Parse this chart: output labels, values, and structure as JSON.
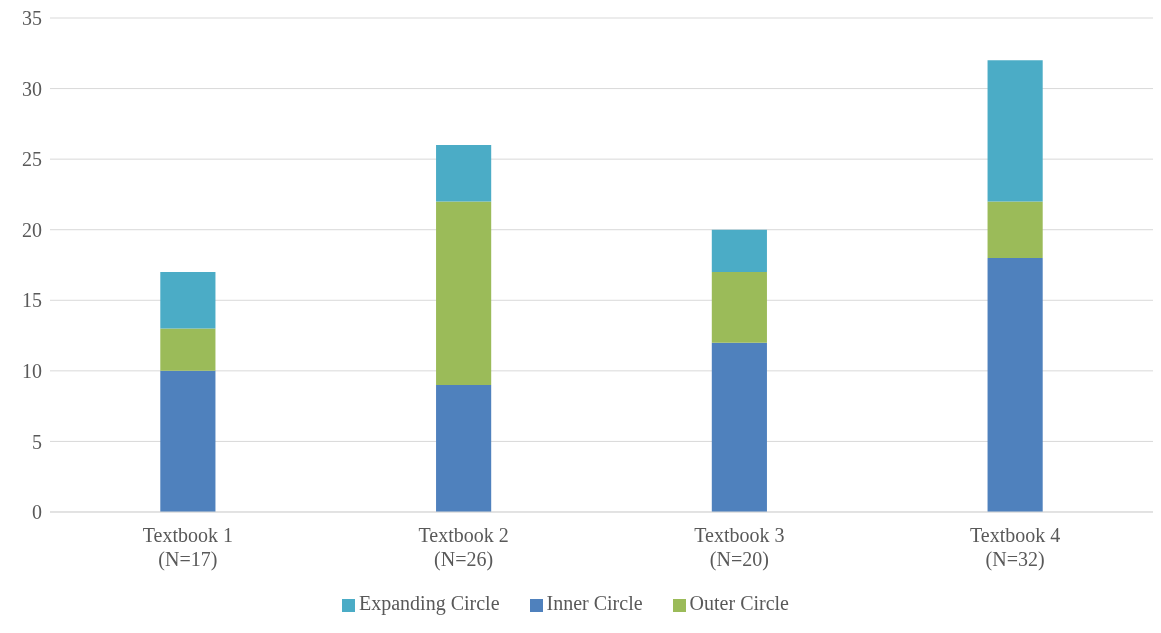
{
  "chart_data": {
    "type": "bar",
    "stacked": true,
    "categories": [
      "Textbook 1\n(N=17)",
      "Textbook 2\n(N=26)",
      "Textbook 3\n(N=20)",
      "Textbook 4\n(N=32)"
    ],
    "series": [
      {
        "name": "Inner Circle",
        "color": "#4f81bd",
        "values": [
          10,
          9,
          12,
          18
        ]
      },
      {
        "name": "Outer Circle",
        "color": "#9bbb59",
        "values": [
          3,
          13,
          5,
          4
        ]
      },
      {
        "name": "Expanding Circle",
        "color": "#4bacc6",
        "values": [
          4,
          4,
          3,
          10
        ]
      }
    ],
    "ylim": [
      0,
      35
    ],
    "yticks": [
      0,
      5,
      10,
      15,
      20,
      25,
      30,
      35
    ],
    "grid": "y",
    "legend": "bottom"
  }
}
